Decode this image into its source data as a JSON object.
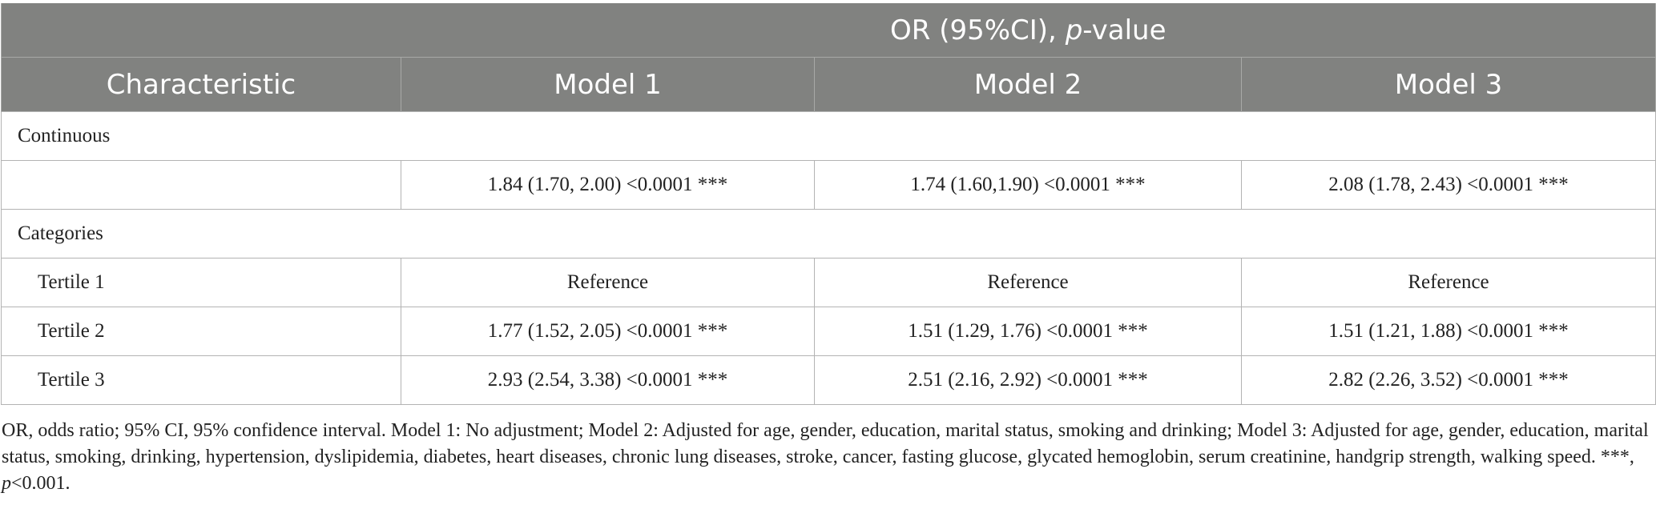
{
  "table": {
    "header_top": {
      "prefix": "OR (95%CI), ",
      "italic": "p",
      "suffix": "-value"
    },
    "columns": [
      "Characteristic",
      "Model 1",
      "Model 2",
      "Model 3"
    ],
    "rows": {
      "continuous_label": "Continuous",
      "continuous_values": [
        "",
        "1.84 (1.70, 2.00) <0.0001 ***",
        "1.74 (1.60,1.90) <0.0001 ***",
        "2.08 (1.78, 2.43) <0.0001 ***"
      ],
      "categories_label": "Categories",
      "tertile1": [
        "Tertile 1",
        "Reference",
        "Reference",
        "Reference"
      ],
      "tertile2": [
        "Tertile 2",
        "1.77 (1.52, 2.05) <0.0001 ***",
        "1.51 (1.29, 1.76) <0.0001 ***",
        "1.51 (1.21, 1.88) <0.0001 ***"
      ],
      "tertile3": [
        "Tertile 3",
        "2.93 (2.54, 3.38) <0.0001 ***",
        "2.51 (2.16, 2.92) <0.0001 ***",
        "2.82 (2.26, 3.52) <0.0001 ***"
      ]
    }
  },
  "footnote": {
    "main": "OR, odds ratio; 95% CI, 95% confidence interval. Model 1: No adjustment; Model 2: Adjusted for age, gender, education, marital status, smoking and drinking; Model 3: Adjusted for age, gender, education, marital status, smoking, drinking, hypertension, dyslipidemia, diabetes, heart diseases, chronic lung diseases, stroke, cancer, fasting glucose, glycated hemoglobin, serum creatinine, handgrip strength, walking speed. ***, ",
    "italic": "p",
    "end": "<0.001."
  }
}
